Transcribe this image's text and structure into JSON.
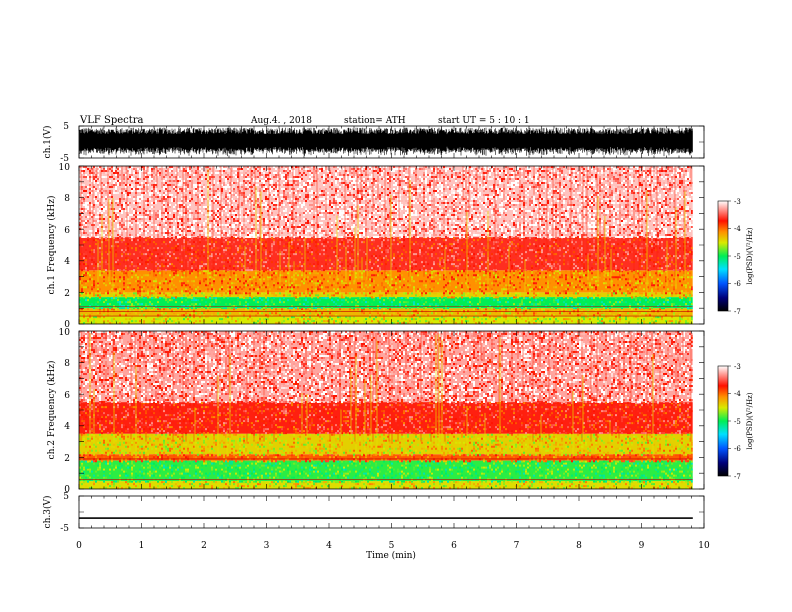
{
  "header": {
    "title": "VLF  Spectra",
    "date": "Aug.4. , 2018",
    "station": "station= ATH",
    "start": "start  UT  =    5  : 10 : 1"
  },
  "colors": {
    "spectral": [
      "#00007a",
      "#0055ff",
      "#00e0ff",
      "#00ee55",
      "#d8ea00",
      "#ff9000",
      "#ff1000",
      "#ffffff"
    ],
    "trace": "#000000"
  },
  "chart_data": [
    {
      "type": "line",
      "name": "ch1_waveform",
      "ylabel": "ch.1(V)",
      "ylim": [
        -5,
        5
      ],
      "yticks": [
        "5",
        "-5"
      ],
      "xlim": [
        0,
        10
      ],
      "description_values": {
        "amplitude_range": [
          -4.5,
          4.5
        ],
        "data_end_min": 9.82
      }
    },
    {
      "type": "heatmap",
      "name": "ch1_spectrogram",
      "ylabel": "ch.1  Frequency  (kHz)",
      "ylim": [
        0,
        10
      ],
      "yticks": [
        "10",
        "8",
        "6",
        "4",
        "2",
        "0"
      ],
      "xlim": [
        0,
        10
      ],
      "data_end_min": 9.82,
      "colorbar": {
        "label": "log(PSD)(V²/Hz)",
        "range": [
          -7,
          -3
        ],
        "ticks": [
          "-3",
          "-4",
          "-5",
          "-6",
          "-7"
        ]
      },
      "bands": [
        {
          "from_khz": 0.0,
          "to_khz": 0.5,
          "log_psd": -4.5
        },
        {
          "from_khz": 0.5,
          "to_khz": 1.0,
          "log_psd": -4.3
        },
        {
          "from_khz": 1.0,
          "to_khz": 1.7,
          "log_psd": -5.0
        },
        {
          "from_khz": 1.7,
          "to_khz": 2.0,
          "log_psd": -4.4
        },
        {
          "from_khz": 2.0,
          "to_khz": 3.4,
          "log_psd": -4.15
        },
        {
          "from_khz": 3.4,
          "to_khz": 5.5,
          "log_psd": -3.7
        },
        {
          "from_khz": 5.5,
          "to_khz": 10.0,
          "log_psd": -3.2
        }
      ]
    },
    {
      "type": "heatmap",
      "name": "ch2_spectrogram",
      "ylabel": "ch.2  Frequency  (kHz)",
      "ylim": [
        0,
        10
      ],
      "yticks": [
        "10",
        "8",
        "6",
        "4",
        "2",
        "0"
      ],
      "xlim": [
        0,
        10
      ],
      "data_end_min": 9.82,
      "colorbar": {
        "label": "log(PSD)(V²/Hz)",
        "range": [
          -7,
          -3
        ],
        "ticks": [
          "-3",
          "-4",
          "-5",
          "-6",
          "-7"
        ]
      },
      "bands": [
        {
          "from_khz": 0.0,
          "to_khz": 0.5,
          "log_psd": -4.45
        },
        {
          "from_khz": 0.5,
          "to_khz": 1.8,
          "log_psd": -4.9
        },
        {
          "from_khz": 1.8,
          "to_khz": 2.2,
          "log_psd": -4.0
        },
        {
          "from_khz": 2.2,
          "to_khz": 3.5,
          "log_psd": -4.4
        },
        {
          "from_khz": 3.5,
          "to_khz": 5.5,
          "log_psd": -3.75
        },
        {
          "from_khz": 5.5,
          "to_khz": 10.0,
          "log_psd": -3.3
        }
      ]
    },
    {
      "type": "line",
      "name": "ch3_waveform",
      "ylabel": "ch.3(V)",
      "ylim": [
        -5,
        5
      ],
      "yticks": [
        "5",
        "0",
        "-5"
      ],
      "xlim": [
        0,
        10
      ],
      "xlabel": "Time  (min)",
      "xticks": [
        "0",
        "1",
        "2",
        "3",
        "4",
        "5",
        "6",
        "7",
        "8",
        "9",
        "10"
      ],
      "description_values": {
        "level": -1.9,
        "amplitude": 0.25,
        "data_end_min": 9.82
      }
    }
  ]
}
